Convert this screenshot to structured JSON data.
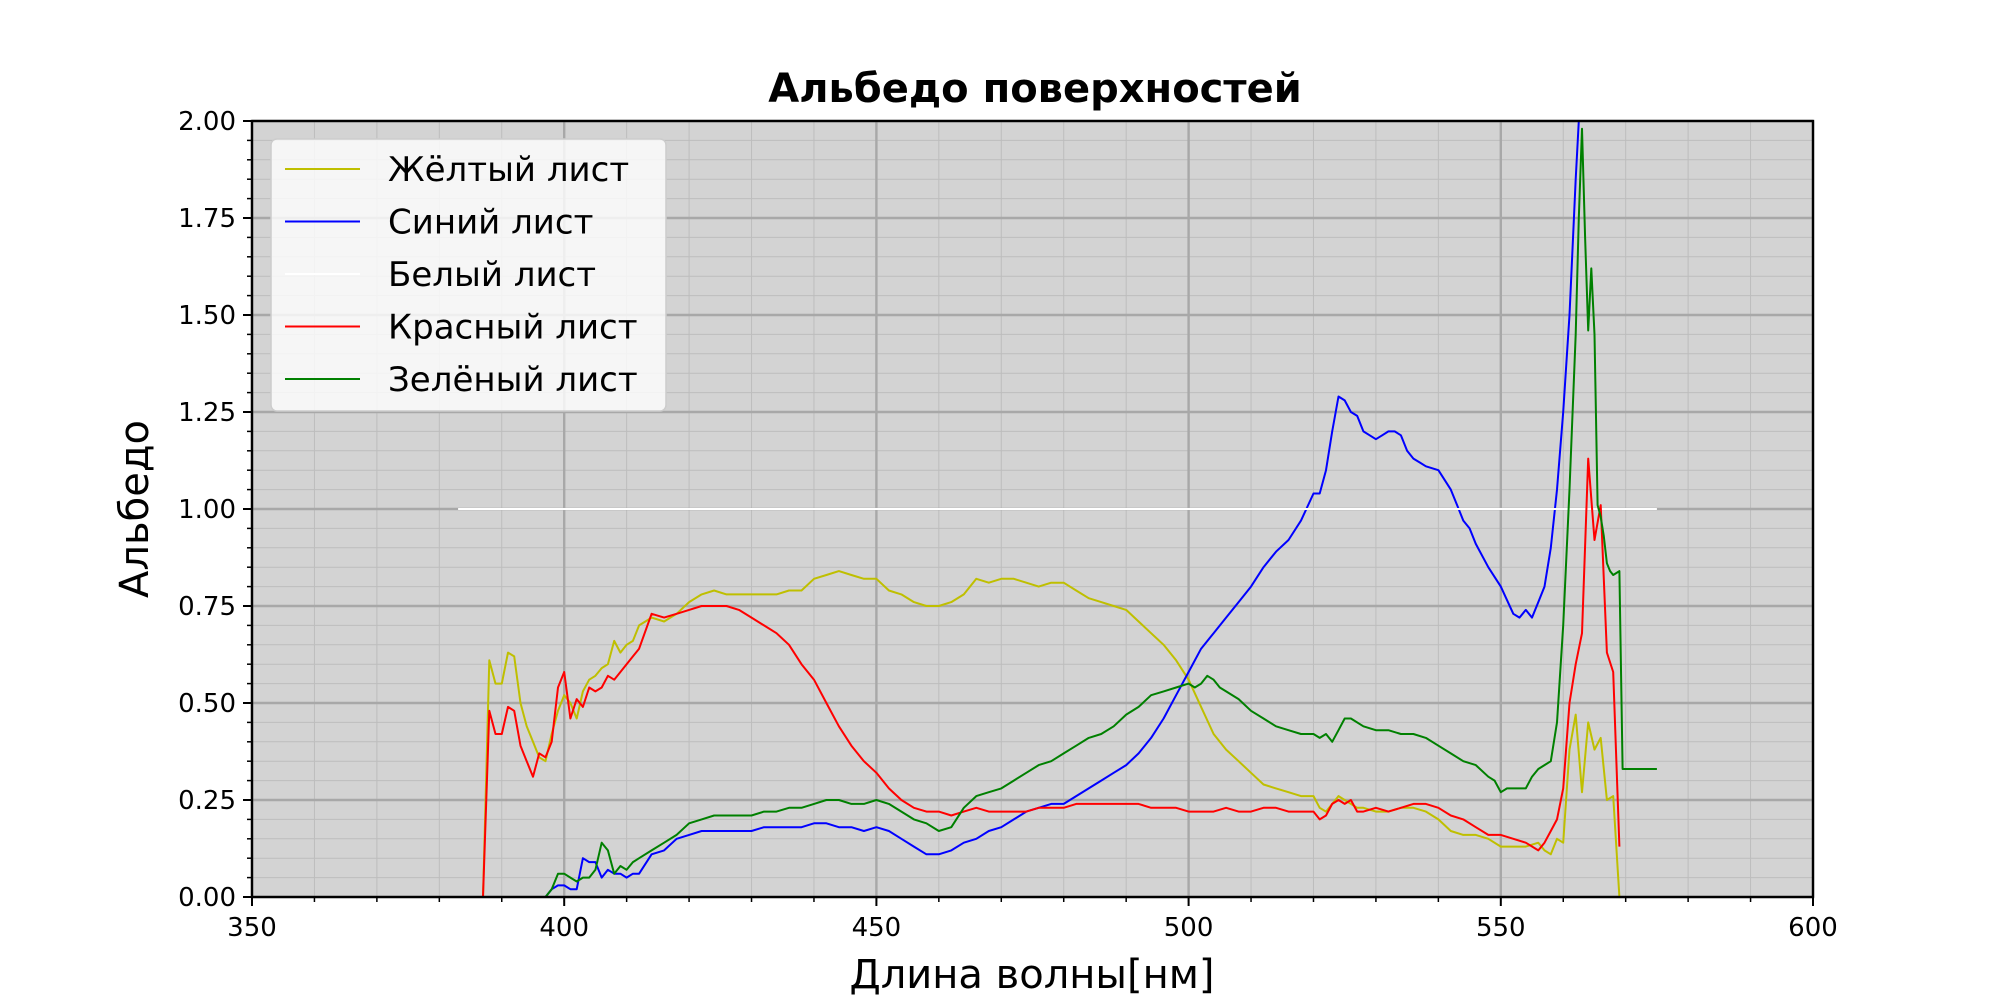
{
  "chart_data": {
    "type": "line",
    "title": "Альбедо поверхностей",
    "xlabel": "Длина волны[нм]",
    "ylabel": "Альбедо",
    "xlim": [
      350,
      600
    ],
    "ylim": [
      0,
      2.0
    ],
    "xticks": [
      350,
      400,
      450,
      500,
      550,
      600
    ],
    "xtick_labels": [
      "350",
      "400",
      "450",
      "500",
      "550",
      "600"
    ],
    "yticks": [
      0,
      0.25,
      0.5,
      0.75,
      1.0,
      1.25,
      1.5,
      1.75,
      2.0
    ],
    "ytick_labels": [
      "0.00",
      "0.25",
      "0.50",
      "0.75",
      "1.00",
      "1.25",
      "1.50",
      "1.75",
      "2.00"
    ],
    "grid": true,
    "minor_grid": true,
    "background": "#d3d3d3",
    "legend_position": "upper-left",
    "series": [
      {
        "name": "Жёлтый лист",
        "color": "#bfbf00",
        "x": [
          383,
          387,
          388,
          389,
          390,
          391,
          392,
          393,
          394,
          395,
          396,
          397,
          398,
          399,
          400,
          401,
          402,
          403,
          404,
          405,
          406,
          407,
          408,
          409,
          410,
          411,
          412,
          414,
          416,
          418,
          420,
          422,
          424,
          426,
          428,
          430,
          432,
          434,
          436,
          438,
          440,
          442,
          444,
          446,
          448,
          450,
          452,
          454,
          456,
          458,
          460,
          462,
          464,
          466,
          468,
          470,
          472,
          474,
          476,
          478,
          480,
          482,
          484,
          486,
          488,
          490,
          492,
          494,
          496,
          498,
          500,
          502,
          504,
          506,
          508,
          510,
          512,
          514,
          516,
          518,
          520,
          521,
          522,
          523,
          524,
          525,
          526,
          527,
          528,
          530,
          532,
          534,
          536,
          538,
          540,
          542,
          544,
          546,
          548,
          550,
          552,
          554,
          556,
          557,
          558,
          559,
          560,
          561,
          562,
          563,
          564,
          565,
          566,
          567,
          568,
          569
        ],
        "y": [
          0,
          0,
          0.61,
          0.55,
          0.55,
          0.63,
          0.62,
          0.5,
          0.44,
          0.4,
          0.36,
          0.35,
          0.42,
          0.48,
          0.52,
          0.5,
          0.46,
          0.53,
          0.56,
          0.57,
          0.59,
          0.6,
          0.66,
          0.63,
          0.65,
          0.66,
          0.7,
          0.72,
          0.71,
          0.73,
          0.76,
          0.78,
          0.79,
          0.78,
          0.78,
          0.78,
          0.78,
          0.78,
          0.79,
          0.79,
          0.82,
          0.83,
          0.84,
          0.83,
          0.82,
          0.82,
          0.79,
          0.78,
          0.76,
          0.75,
          0.75,
          0.76,
          0.78,
          0.82,
          0.81,
          0.82,
          0.82,
          0.81,
          0.8,
          0.81,
          0.81,
          0.79,
          0.77,
          0.76,
          0.75,
          0.74,
          0.71,
          0.68,
          0.65,
          0.61,
          0.56,
          0.49,
          0.42,
          0.38,
          0.35,
          0.32,
          0.29,
          0.28,
          0.27,
          0.26,
          0.26,
          0.23,
          0.22,
          0.24,
          0.26,
          0.25,
          0.24,
          0.23,
          0.23,
          0.22,
          0.22,
          0.23,
          0.23,
          0.22,
          0.2,
          0.17,
          0.16,
          0.16,
          0.15,
          0.13,
          0.13,
          0.13,
          0.14,
          0.12,
          0.11,
          0.15,
          0.14,
          0.38,
          0.47,
          0.27,
          0.45,
          0.38,
          0.41,
          0.25,
          0.26,
          0
        ]
      },
      {
        "name": "Синий лист",
        "color": "#0000ff",
        "x": [
          383,
          396,
          397,
          398,
          399,
          400,
          401,
          402,
          403,
          404,
          405,
          406,
          407,
          408,
          409,
          410,
          411,
          412,
          414,
          416,
          418,
          420,
          422,
          424,
          426,
          428,
          430,
          432,
          434,
          436,
          438,
          440,
          442,
          444,
          446,
          448,
          450,
          452,
          454,
          456,
          458,
          460,
          462,
          464,
          466,
          468,
          470,
          472,
          474,
          476,
          478,
          480,
          482,
          484,
          486,
          488,
          490,
          492,
          494,
          496,
          498,
          500,
          502,
          504,
          506,
          508,
          510,
          512,
          514,
          516,
          518,
          520,
          521,
          522,
          523,
          524,
          525,
          526,
          527,
          528,
          529,
          530,
          531,
          532,
          533,
          534,
          535,
          536,
          537,
          538,
          540,
          542,
          543,
          544,
          545,
          546,
          548,
          550,
          552,
          553,
          554,
          555,
          556,
          557,
          558,
          559,
          560,
          561,
          562,
          562.5
        ],
        "y": [
          0,
          0,
          0,
          0.02,
          0.03,
          0.03,
          0.02,
          0.02,
          0.1,
          0.09,
          0.09,
          0.05,
          0.07,
          0.06,
          0.06,
          0.05,
          0.06,
          0.06,
          0.11,
          0.12,
          0.15,
          0.16,
          0.17,
          0.17,
          0.17,
          0.17,
          0.17,
          0.18,
          0.18,
          0.18,
          0.18,
          0.19,
          0.19,
          0.18,
          0.18,
          0.17,
          0.18,
          0.17,
          0.15,
          0.13,
          0.11,
          0.11,
          0.12,
          0.14,
          0.15,
          0.17,
          0.18,
          0.2,
          0.22,
          0.23,
          0.24,
          0.24,
          0.26,
          0.28,
          0.3,
          0.32,
          0.34,
          0.37,
          0.41,
          0.46,
          0.52,
          0.58,
          0.64,
          0.68,
          0.72,
          0.76,
          0.8,
          0.85,
          0.89,
          0.92,
          0.97,
          1.04,
          1.04,
          1.1,
          1.2,
          1.29,
          1.28,
          1.25,
          1.24,
          1.2,
          1.19,
          1.18,
          1.19,
          1.2,
          1.2,
          1.19,
          1.15,
          1.13,
          1.12,
          1.11,
          1.1,
          1.05,
          1.01,
          0.97,
          0.95,
          0.91,
          0.85,
          0.8,
          0.73,
          0.72,
          0.74,
          0.72,
          0.76,
          0.8,
          0.9,
          1.05,
          1.25,
          1.5,
          1.85,
          2.0
        ]
      },
      {
        "name": "Белый лист",
        "color": "#ffffff",
        "x": [
          383,
          575
        ],
        "y": [
          1.0,
          1.0
        ]
      },
      {
        "name": "Красный лист",
        "color": "#ff0000",
        "x": [
          383,
          387,
          388,
          389,
          390,
          391,
          392,
          393,
          394,
          395,
          396,
          397,
          398,
          399,
          400,
          401,
          402,
          403,
          404,
          405,
          406,
          407,
          408,
          409,
          410,
          411,
          412,
          414,
          416,
          418,
          420,
          422,
          424,
          426,
          428,
          430,
          432,
          434,
          436,
          438,
          440,
          442,
          444,
          446,
          448,
          450,
          452,
          454,
          456,
          458,
          460,
          462,
          464,
          466,
          468,
          470,
          472,
          474,
          476,
          478,
          480,
          482,
          484,
          486,
          488,
          490,
          492,
          494,
          496,
          498,
          500,
          502,
          504,
          506,
          508,
          510,
          512,
          514,
          516,
          518,
          520,
          521,
          522,
          523,
          524,
          525,
          526,
          527,
          528,
          530,
          532,
          534,
          536,
          538,
          540,
          542,
          544,
          546,
          548,
          550,
          552,
          554,
          556,
          557,
          558,
          559,
          560,
          561,
          562,
          563,
          564,
          565,
          566,
          567,
          568,
          569
        ],
        "y": [
          0,
          0,
          0.48,
          0.42,
          0.42,
          0.49,
          0.48,
          0.39,
          0.35,
          0.31,
          0.37,
          0.36,
          0.4,
          0.54,
          0.58,
          0.46,
          0.51,
          0.49,
          0.54,
          0.53,
          0.54,
          0.57,
          0.56,
          0.58,
          0.6,
          0.62,
          0.64,
          0.73,
          0.72,
          0.73,
          0.74,
          0.75,
          0.75,
          0.75,
          0.74,
          0.72,
          0.7,
          0.68,
          0.65,
          0.6,
          0.56,
          0.5,
          0.44,
          0.39,
          0.35,
          0.32,
          0.28,
          0.25,
          0.23,
          0.22,
          0.22,
          0.21,
          0.22,
          0.23,
          0.22,
          0.22,
          0.22,
          0.22,
          0.23,
          0.23,
          0.23,
          0.24,
          0.24,
          0.24,
          0.24,
          0.24,
          0.24,
          0.23,
          0.23,
          0.23,
          0.22,
          0.22,
          0.22,
          0.23,
          0.22,
          0.22,
          0.23,
          0.23,
          0.22,
          0.22,
          0.22,
          0.2,
          0.21,
          0.24,
          0.25,
          0.24,
          0.25,
          0.22,
          0.22,
          0.23,
          0.22,
          0.23,
          0.24,
          0.24,
          0.23,
          0.21,
          0.2,
          0.18,
          0.16,
          0.16,
          0.15,
          0.14,
          0.12,
          0.14,
          0.17,
          0.2,
          0.28,
          0.5,
          0.6,
          0.68,
          1.13,
          0.92,
          1.01,
          0.63,
          0.58,
          0.13
        ]
      },
      {
        "name": "Зелёный лист",
        "color": "#008000",
        "x": [
          383,
          396,
          397,
          398,
          399,
          400,
          401,
          402,
          403,
          404,
          405,
          406,
          407,
          408,
          409,
          410,
          411,
          412,
          414,
          416,
          418,
          420,
          422,
          424,
          426,
          428,
          430,
          432,
          434,
          436,
          438,
          440,
          442,
          444,
          446,
          448,
          450,
          452,
          454,
          456,
          458,
          460,
          462,
          464,
          466,
          468,
          470,
          472,
          474,
          476,
          478,
          480,
          482,
          484,
          486,
          488,
          490,
          492,
          494,
          496,
          498,
          500,
          501,
          502,
          503,
          504,
          505,
          506,
          508,
          510,
          512,
          514,
          516,
          518,
          520,
          521,
          522,
          523,
          524,
          525,
          526,
          528,
          530,
          532,
          534,
          536,
          538,
          540,
          542,
          544,
          546,
          548,
          549,
          550,
          551,
          552,
          553,
          554,
          555,
          556,
          557,
          558,
          559,
          560,
          561,
          562,
          562.5,
          563,
          563.5,
          564,
          564.5,
          565,
          565.5,
          566,
          566.5,
          567,
          567.5,
          568,
          569,
          569.5,
          570,
          571,
          575
        ],
        "y": [
          0,
          0,
          0,
          0.02,
          0.06,
          0.06,
          0.05,
          0.04,
          0.05,
          0.05,
          0.07,
          0.14,
          0.12,
          0.06,
          0.08,
          0.07,
          0.09,
          0.1,
          0.12,
          0.14,
          0.16,
          0.19,
          0.2,
          0.21,
          0.21,
          0.21,
          0.21,
          0.22,
          0.22,
          0.23,
          0.23,
          0.24,
          0.25,
          0.25,
          0.24,
          0.24,
          0.25,
          0.24,
          0.22,
          0.2,
          0.19,
          0.17,
          0.18,
          0.23,
          0.26,
          0.27,
          0.28,
          0.3,
          0.32,
          0.34,
          0.35,
          0.37,
          0.39,
          0.41,
          0.42,
          0.44,
          0.47,
          0.49,
          0.52,
          0.53,
          0.54,
          0.55,
          0.54,
          0.55,
          0.57,
          0.56,
          0.54,
          0.53,
          0.51,
          0.48,
          0.46,
          0.44,
          0.43,
          0.42,
          0.42,
          0.41,
          0.42,
          0.4,
          0.43,
          0.46,
          0.46,
          0.44,
          0.43,
          0.43,
          0.42,
          0.42,
          0.41,
          0.39,
          0.37,
          0.35,
          0.34,
          0.31,
          0.3,
          0.27,
          0.28,
          0.28,
          0.28,
          0.28,
          0.31,
          0.33,
          0.34,
          0.35,
          0.45,
          0.7,
          1.05,
          1.45,
          1.75,
          1.98,
          1.7,
          1.46,
          1.62,
          1.45,
          1.01,
          0.98,
          0.93,
          0.86,
          0.84,
          0.83,
          0.84,
          0.33,
          0.33,
          0.33,
          0.33
        ]
      }
    ]
  }
}
